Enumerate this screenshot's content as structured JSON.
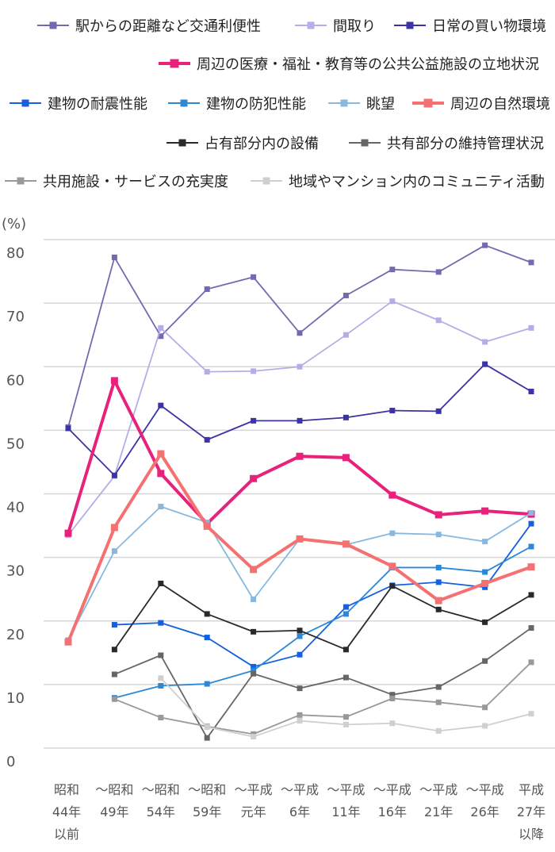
{
  "chart_data": {
    "type": "line",
    "ylabel": "(%)",
    "ylim": [
      0,
      80
    ],
    "yticks": [
      "0",
      "10",
      "20",
      "30",
      "40",
      "50",
      "60",
      "70",
      "80"
    ],
    "grid": true,
    "legend_position": "top",
    "categories": [
      [
        "昭和",
        "44年",
        "以前"
      ],
      [
        "～昭和",
        "49年"
      ],
      [
        "～昭和",
        "54年"
      ],
      [
        "～昭和",
        "59年"
      ],
      [
        "～平成",
        "元年"
      ],
      [
        "～平成",
        "6年"
      ],
      [
        "～平成",
        "11年"
      ],
      [
        "～平成",
        "16年"
      ],
      [
        "～平成",
        "21年"
      ],
      [
        "～平成",
        "26年"
      ],
      [
        "平成",
        "27年",
        "以降"
      ]
    ],
    "series": [
      {
        "name": "駅からの距離など交通利便性",
        "color": "#7469b0",
        "width": 1.8,
        "values": [
          50.5,
          77.2,
          64.8,
          72.2,
          74.1,
          65.3,
          71.2,
          75.3,
          74.9,
          79.1,
          76.4
        ]
      },
      {
        "name": "間取り",
        "color": "#b3aee8",
        "width": 1.8,
        "values": [
          33.5,
          42.8,
          66.1,
          59.2,
          59.3,
          60.0,
          65.0,
          70.3,
          67.3,
          63.9,
          66.1
        ]
      },
      {
        "name": "日常の買い物環境",
        "color": "#3b33a6",
        "width": 1.8,
        "values": [
          50.3,
          42.9,
          53.9,
          48.5,
          51.5,
          51.5,
          52.0,
          53.1,
          53.0,
          60.4,
          56.1
        ]
      },
      {
        "name": "周辺の医療・福祉・教育等の公共公益施設の立地状況",
        "color": "#e8227a",
        "width": 4,
        "values": [
          33.8,
          57.8,
          43.2,
          35.3,
          42.4,
          45.9,
          45.7,
          39.8,
          36.7,
          37.3,
          36.8
        ]
      },
      {
        "name": "建物の耐震性能",
        "color": "#1560e0",
        "width": 1.8,
        "values": [
          null,
          19.4,
          19.7,
          17.4,
          12.8,
          14.7,
          22.2,
          25.6,
          26.1,
          25.3,
          35.3
        ]
      },
      {
        "name": "建物の防犯性能",
        "color": "#2c88d6",
        "width": 1.8,
        "values": [
          null,
          7.9,
          9.8,
          10.1,
          12.2,
          17.6,
          21.1,
          28.4,
          28.4,
          27.7,
          31.7
        ]
      },
      {
        "name": "眺望",
        "color": "#86b8e0",
        "width": 1.8,
        "values": [
          17.0,
          31.0,
          38.0,
          35.5,
          23.4,
          32.9,
          32.0,
          33.8,
          33.6,
          32.5,
          37.0
        ]
      },
      {
        "name": "周辺の自然環境",
        "color": "#f57070",
        "width": 4,
        "values": [
          16.7,
          34.7,
          46.3,
          34.9,
          28.1,
          32.9,
          32.1,
          28.6,
          23.2,
          25.9,
          28.5
        ]
      },
      {
        "name": "占有部分内の設備",
        "color": "#2a2a2a",
        "width": 1.8,
        "values": [
          null,
          15.5,
          25.9,
          21.1,
          18.3,
          18.5,
          15.5,
          25.5,
          21.8,
          19.8,
          24.1
        ]
      },
      {
        "name": "共有部分の維持管理状況",
        "color": "#666666",
        "width": 1.8,
        "values": [
          null,
          11.6,
          14.6,
          1.6,
          11.7,
          9.4,
          11.1,
          8.4,
          9.6,
          13.7,
          18.9
        ]
      },
      {
        "name": "共用施設・サービスの充実度",
        "color": "#999999",
        "width": 1.8,
        "values": [
          null,
          7.7,
          4.8,
          3.4,
          2.2,
          5.2,
          4.9,
          7.8,
          7.2,
          6.4,
          13.5
        ]
      },
      {
        "name": "地域やマンション内のコミュニティ活動",
        "color": "#cfcfcf",
        "width": 1.8,
        "values": [
          null,
          null,
          11.0,
          3.3,
          1.8,
          4.3,
          3.7,
          3.9,
          2.7,
          3.5,
          5.4
        ]
      }
    ]
  }
}
